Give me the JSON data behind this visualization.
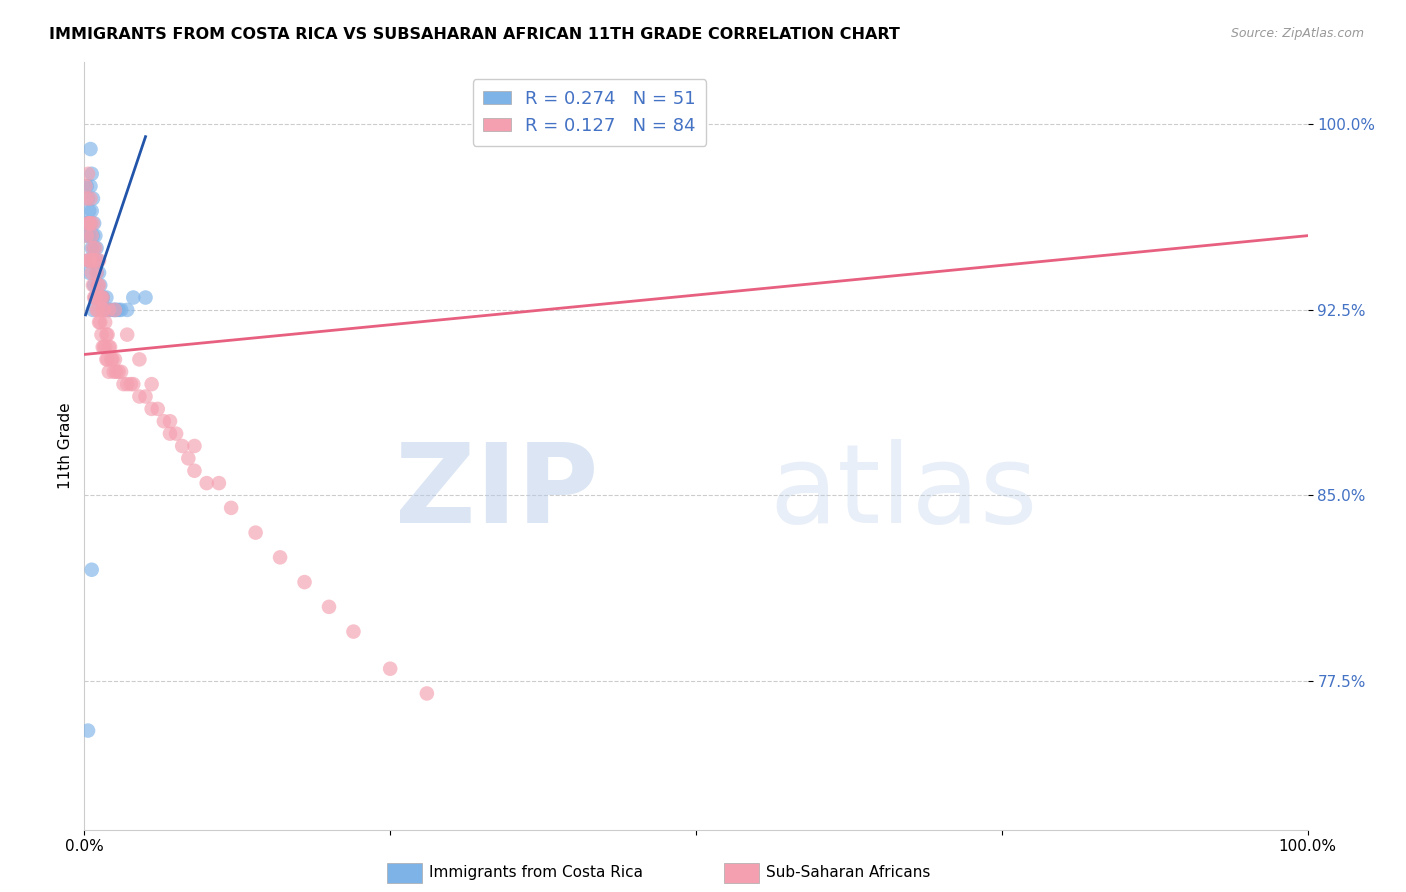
{
  "title": "IMMIGRANTS FROM COSTA RICA VS SUBSAHARAN AFRICAN 11TH GRADE CORRELATION CHART",
  "source": "Source: ZipAtlas.com",
  "ylabel": "11th Grade",
  "ytick_labels": [
    "100.0%",
    "92.5%",
    "85.0%",
    "77.5%"
  ],
  "ytick_values": [
    1.0,
    0.925,
    0.85,
    0.775
  ],
  "xlim": [
    0.0,
    1.0
  ],
  "ylim": [
    0.715,
    1.025
  ],
  "legend_blue_r": "0.274",
  "legend_blue_n": "51",
  "legend_pink_r": "0.127",
  "legend_pink_n": "84",
  "legend_label_blue": "Immigrants from Costa Rica",
  "legend_label_pink": "Sub-Saharan Africans",
  "blue_color": "#7EB3E8",
  "pink_color": "#F4A0B0",
  "blue_line_color": "#2255AA",
  "pink_line_color": "#E86080",
  "blue_scatter_x": [
    0.001,
    0.002,
    0.002,
    0.003,
    0.003,
    0.003,
    0.004,
    0.004,
    0.004,
    0.005,
    0.005,
    0.005,
    0.006,
    0.006,
    0.006,
    0.007,
    0.007,
    0.007,
    0.008,
    0.008,
    0.008,
    0.009,
    0.009,
    0.01,
    0.01,
    0.011,
    0.011,
    0.012,
    0.013,
    0.014,
    0.015,
    0.016,
    0.017,
    0.018,
    0.019,
    0.02,
    0.022,
    0.024,
    0.026,
    0.028,
    0.03,
    0.035,
    0.04,
    0.05,
    0.007,
    0.018,
    0.025,
    0.009,
    0.006,
    0.003,
    0.015
  ],
  "blue_scatter_y": [
    0.96,
    0.975,
    0.955,
    0.97,
    0.96,
    0.945,
    0.965,
    0.955,
    0.94,
    0.99,
    0.975,
    0.96,
    0.98,
    0.965,
    0.95,
    0.97,
    0.955,
    0.945,
    0.96,
    0.95,
    0.935,
    0.955,
    0.945,
    0.95,
    0.94,
    0.945,
    0.935,
    0.94,
    0.935,
    0.93,
    0.93,
    0.925,
    0.925,
    0.925,
    0.925,
    0.925,
    0.925,
    0.925,
    0.925,
    0.925,
    0.925,
    0.925,
    0.93,
    0.93,
    0.925,
    0.93,
    0.925,
    0.93,
    0.82,
    0.755,
    0.93
  ],
  "pink_scatter_x": [
    0.001,
    0.002,
    0.002,
    0.003,
    0.003,
    0.004,
    0.004,
    0.005,
    0.005,
    0.006,
    0.006,
    0.007,
    0.007,
    0.008,
    0.008,
    0.009,
    0.009,
    0.01,
    0.01,
    0.011,
    0.011,
    0.012,
    0.012,
    0.013,
    0.013,
    0.014,
    0.014,
    0.015,
    0.015,
    0.016,
    0.016,
    0.017,
    0.017,
    0.018,
    0.018,
    0.019,
    0.019,
    0.02,
    0.02,
    0.021,
    0.022,
    0.023,
    0.024,
    0.025,
    0.026,
    0.028,
    0.03,
    0.032,
    0.035,
    0.038,
    0.04,
    0.045,
    0.05,
    0.055,
    0.06,
    0.065,
    0.07,
    0.075,
    0.08,
    0.085,
    0.09,
    0.1,
    0.12,
    0.14,
    0.16,
    0.18,
    0.2,
    0.22,
    0.25,
    0.28,
    0.003,
    0.005,
    0.007,
    0.009,
    0.012,
    0.015,
    0.02,
    0.025,
    0.035,
    0.045,
    0.055,
    0.07,
    0.09,
    0.11
  ],
  "pink_scatter_y": [
    0.975,
    0.97,
    0.955,
    0.96,
    0.945,
    0.96,
    0.945,
    0.96,
    0.945,
    0.955,
    0.94,
    0.95,
    0.935,
    0.945,
    0.93,
    0.945,
    0.93,
    0.94,
    0.925,
    0.935,
    0.925,
    0.935,
    0.92,
    0.93,
    0.92,
    0.93,
    0.915,
    0.925,
    0.91,
    0.925,
    0.91,
    0.92,
    0.91,
    0.915,
    0.905,
    0.915,
    0.905,
    0.91,
    0.9,
    0.91,
    0.905,
    0.905,
    0.9,
    0.905,
    0.9,
    0.9,
    0.9,
    0.895,
    0.895,
    0.895,
    0.895,
    0.89,
    0.89,
    0.885,
    0.885,
    0.88,
    0.875,
    0.875,
    0.87,
    0.865,
    0.86,
    0.855,
    0.845,
    0.835,
    0.825,
    0.815,
    0.805,
    0.795,
    0.78,
    0.77,
    0.98,
    0.97,
    0.96,
    0.95,
    0.945,
    0.93,
    0.925,
    0.925,
    0.915,
    0.905,
    0.895,
    0.88,
    0.87,
    0.855
  ],
  "blue_line_x": [
    0.001,
    0.05
  ],
  "blue_line_y_start": 0.923,
  "blue_line_y_end": 0.995,
  "pink_line_x": [
    0.0,
    1.0
  ],
  "pink_line_y_start": 0.907,
  "pink_line_y_end": 0.955
}
